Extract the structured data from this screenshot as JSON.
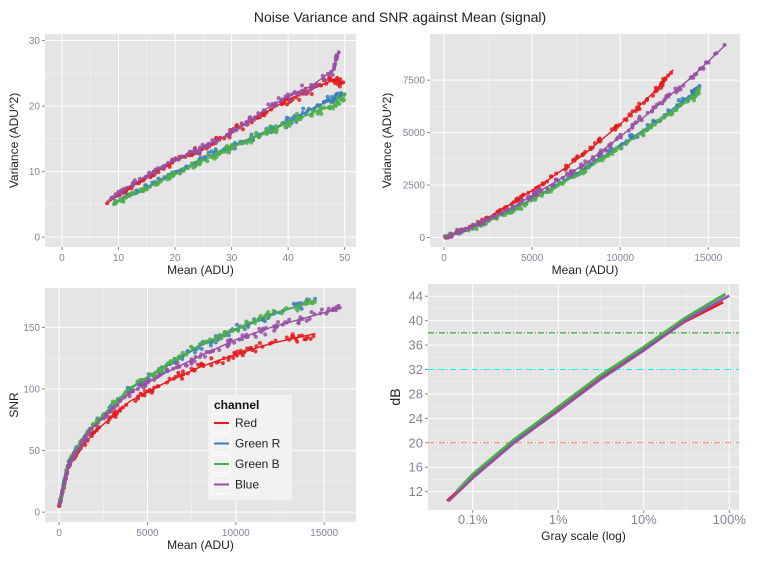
{
  "title": "Noise Variance and SNR against Mean (signal)",
  "colors": {
    "Red": "#e41a1c",
    "Green R": "#377eb8",
    "Green B": "#4daf4a",
    "Blue": "#984ea3"
  },
  "legend": {
    "title": "channel",
    "entries": [
      "Red",
      "Green R",
      "Green B",
      "Blue"
    ],
    "placement": "inside-bottom-right of bottom-left panel"
  },
  "chart_data": [
    {
      "type": "scatter",
      "xlabel": "Mean (ADU)",
      "ylabel": "Variance (ADU^2)",
      "xlim": [
        -3,
        52
      ],
      "ylim": [
        -1.5,
        31
      ],
      "xticks": [
        0,
        10,
        20,
        30,
        40,
        50
      ],
      "yticks": [
        0,
        10,
        20,
        30
      ],
      "grid": true,
      "smooth_line": true,
      "series": [
        {
          "name": "Red",
          "x": [
            8,
            12,
            16,
            20,
            24,
            28,
            32,
            36,
            40,
            44,
            48,
            50
          ],
          "y": [
            5.2,
            7.6,
            9.6,
            11.6,
            13.2,
            15,
            17,
            19,
            21,
            22.5,
            24,
            23.5
          ]
        },
        {
          "name": "Green R",
          "x": [
            9,
            13,
            17,
            21,
            25,
            29,
            33,
            37,
            41,
            45,
            48,
            50
          ],
          "y": [
            5.2,
            6.8,
            8.5,
            10.3,
            12,
            13.5,
            15,
            16.5,
            18,
            20,
            21,
            22
          ]
        },
        {
          "name": "Green B",
          "x": [
            9,
            13,
            17,
            21,
            25,
            29,
            33,
            37,
            41,
            45,
            48,
            50
          ],
          "y": [
            5,
            6.7,
            8.3,
            10,
            11.7,
            13.2,
            14.8,
            16.3,
            17.8,
            19.2,
            20,
            21.5
          ]
        },
        {
          "name": "Blue",
          "x": [
            8,
            12,
            16,
            20,
            24,
            28,
            32,
            36,
            40,
            44,
            48,
            49
          ],
          "y": [
            5.5,
            7.8,
            9.8,
            11.8,
            13.3,
            15,
            17,
            19.5,
            21.5,
            23,
            25.5,
            28.5
          ]
        }
      ]
    },
    {
      "type": "scatter",
      "xlabel": "Mean (ADU)",
      "ylabel": "Variance (ADU^2)",
      "xlim": [
        -800,
        16800
      ],
      "ylim": [
        -450,
        9700
      ],
      "xticks": [
        0,
        5000,
        10000,
        15000
      ],
      "yticks": [
        0,
        2500,
        5000,
        7500
      ],
      "grid": true,
      "smooth_line": true,
      "series": [
        {
          "name": "Red",
          "x": [
            0,
            2000,
            4000,
            6000,
            8000,
            10000,
            12000,
            13000
          ],
          "y": [
            0,
            700,
            1700,
            2800,
            4000,
            5400,
            7000,
            8000
          ]
        },
        {
          "name": "Green R",
          "x": [
            0,
            2000,
            4000,
            6000,
            8000,
            10000,
            12000,
            14000,
            14500
          ],
          "y": [
            0,
            600,
            1400,
            2300,
            3300,
            4400,
            5500,
            6800,
            7200
          ]
        },
        {
          "name": "Green B",
          "x": [
            0,
            2000,
            4000,
            6000,
            8000,
            10000,
            12000,
            14000,
            14500
          ],
          "y": [
            0,
            580,
            1350,
            2250,
            3200,
            4300,
            5400,
            6600,
            7000
          ]
        },
        {
          "name": "Blue",
          "x": [
            0,
            2000,
            4000,
            6000,
            8000,
            10000,
            12000,
            14000,
            16000
          ],
          "y": [
            0,
            650,
            1500,
            2500,
            3500,
            4800,
            6200,
            7600,
            9200
          ]
        }
      ]
    },
    {
      "type": "scatter",
      "xlabel": "Mean (ADU)",
      "ylabel": "SNR",
      "xlim": [
        -800,
        16800
      ],
      "ylim": [
        -8,
        182
      ],
      "xticks": [
        0,
        5000,
        10000,
        15000
      ],
      "yticks": [
        0,
        50,
        100,
        150
      ],
      "grid": true,
      "smooth_line": true,
      "series": [
        {
          "name": "Red",
          "x": [
            0,
            500,
            1000,
            2000,
            4000,
            6000,
            8000,
            10000,
            12000,
            14500
          ],
          "y": [
            5,
            35,
            48,
            65,
            90,
            105,
            118,
            128,
            137,
            145
          ]
        },
        {
          "name": "Green R",
          "x": [
            0,
            500,
            1000,
            2000,
            4000,
            6000,
            8000,
            10000,
            12000,
            14500
          ],
          "y": [
            5,
            38,
            52,
            72,
            100,
            118,
            135,
            148,
            160,
            172
          ]
        },
        {
          "name": "Green B",
          "x": [
            0,
            500,
            1000,
            2000,
            4000,
            6000,
            8000,
            10000,
            12000,
            14500
          ],
          "y": [
            5,
            38,
            52,
            72,
            101,
            119,
            136,
            149,
            161,
            172
          ]
        },
        {
          "name": "Blue",
          "x": [
            0,
            500,
            1000,
            2000,
            4000,
            6000,
            8000,
            10000,
            12000,
            14000,
            16000
          ],
          "y": [
            5,
            37,
            50,
            70,
            97,
            113,
            127,
            140,
            150,
            158,
            166
          ]
        }
      ]
    },
    {
      "type": "line",
      "xlabel": "Gray scale (log)",
      "ylabel": "dB",
      "xscale": "log",
      "xlim": [
        0.0003,
        1.3
      ],
      "ylim": [
        9,
        46
      ],
      "xticks": [
        0.001,
        0.01,
        0.1,
        1
      ],
      "xticklabels": [
        "0.1%",
        "1%",
        "10%",
        "100%"
      ],
      "yticks": [
        12,
        16,
        20,
        24,
        28,
        32,
        36,
        40,
        44
      ],
      "grid": true,
      "hlines": [
        {
          "y": 38,
          "color": "#1a9e1a",
          "style": "dashdot"
        },
        {
          "y": 32,
          "color": "#00ffff",
          "style": "dashdot"
        },
        {
          "y": 20,
          "color": "#f08070",
          "style": "dashdot"
        }
      ],
      "series": [
        {
          "name": "Red",
          "x": [
            0.0005,
            0.001,
            0.003,
            0.01,
            0.03,
            0.1,
            0.3,
            0.85
          ],
          "y": [
            10.5,
            14.3,
            20,
            25.3,
            30.3,
            35.2,
            39.8,
            43
          ]
        },
        {
          "name": "Green R",
          "x": [
            0.00065,
            0.001,
            0.003,
            0.01,
            0.03,
            0.1,
            0.3,
            0.9
          ],
          "y": [
            12,
            14.8,
            20.4,
            25.8,
            30.8,
            35.6,
            40.3,
            44.3
          ]
        },
        {
          "name": "Green B",
          "x": [
            0.00065,
            0.001,
            0.003,
            0.01,
            0.03,
            0.1,
            0.3,
            0.9
          ],
          "y": [
            12.1,
            14.9,
            20.5,
            25.9,
            30.9,
            35.7,
            40.4,
            44.4
          ]
        },
        {
          "name": "Blue",
          "x": [
            0.00052,
            0.001,
            0.003,
            0.01,
            0.03,
            0.1,
            0.3,
            1.0
          ],
          "y": [
            10.4,
            14.2,
            19.9,
            25.2,
            30.2,
            35.1,
            39.9,
            44.1
          ]
        }
      ]
    }
  ]
}
